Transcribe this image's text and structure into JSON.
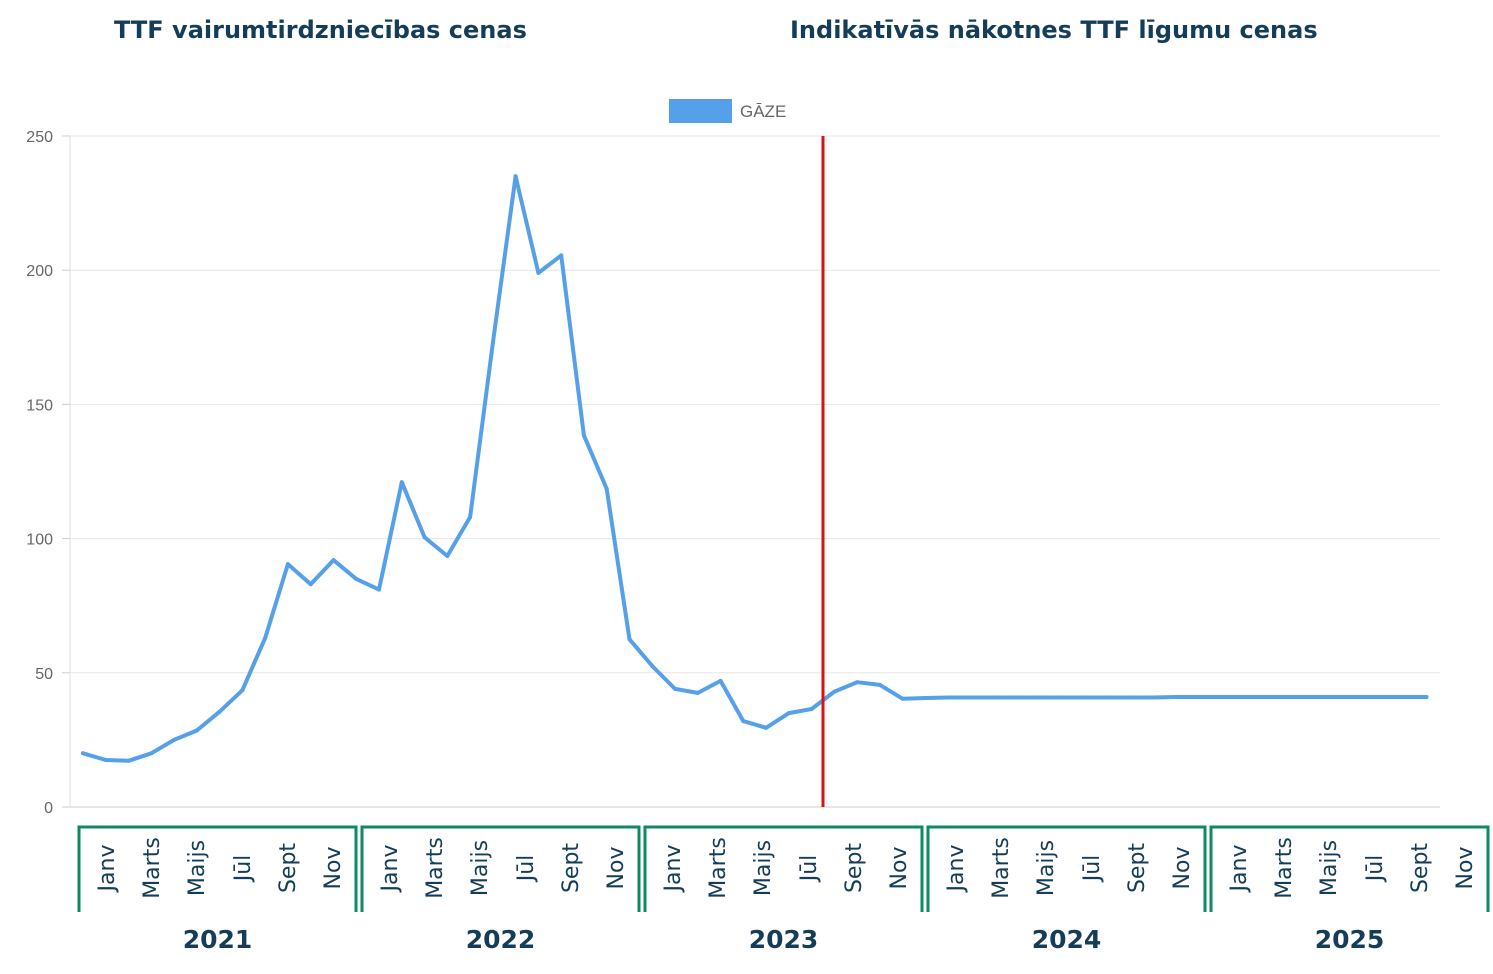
{
  "headings": {
    "left": "TTF vairumtirdzniecības cenas",
    "right": "Indikatīvās nākotnes TTF līgumu cenas"
  },
  "chart_data": {
    "type": "line",
    "legend": {
      "label": "GĀZE",
      "position": "top-center"
    },
    "colors": {
      "series": "#56a0ea",
      "divider": "#dd1111",
      "year_box": "#0d8a61",
      "grid": "#e6e6e6",
      "text": "#143d59"
    },
    "y_ticks": [
      0,
      50,
      100,
      150,
      200,
      250
    ],
    "ylim": [
      0,
      250
    ],
    "grid": true,
    "years": [
      "2021",
      "2022",
      "2023",
      "2024",
      "2025"
    ],
    "month_labels": [
      "Janv",
      "Marts",
      "Maijs",
      "Jūl",
      "Sept",
      "Nov"
    ],
    "divider_after": "2023-09",
    "series": [
      {
        "name": "GĀZE",
        "points": [
          [
            "2021-01",
            20
          ],
          [
            "2021-02",
            17.5
          ],
          [
            "2021-03",
            17.2
          ],
          [
            "2021-04",
            20
          ],
          [
            "2021-05",
            25
          ],
          [
            "2021-06",
            28.5
          ],
          [
            "2021-07",
            35.5
          ],
          [
            "2021-08",
            43.5
          ],
          [
            "2021-09",
            63
          ],
          [
            "2021-10",
            90.5
          ],
          [
            "2021-11",
            83
          ],
          [
            "2021-12",
            92
          ],
          [
            "2022-01",
            85
          ],
          [
            "2022-02",
            81
          ],
          [
            "2022-03",
            121
          ],
          [
            "2022-04",
            100.5
          ],
          [
            "2022-05",
            93.5
          ],
          [
            "2022-06",
            108
          ],
          [
            "2022-07",
            173
          ],
          [
            "2022-08",
            235
          ],
          [
            "2022-09",
            199
          ],
          [
            "2022-10",
            205.5
          ],
          [
            "2022-11",
            138.5
          ],
          [
            "2022-12",
            118.5
          ],
          [
            "2023-01",
            62.5
          ],
          [
            "2023-02",
            52.5
          ],
          [
            "2023-03",
            44
          ],
          [
            "2023-04",
            42.5
          ],
          [
            "2023-05",
            47
          ],
          [
            "2023-06",
            32
          ],
          [
            "2023-07",
            29.5
          ],
          [
            "2023-08",
            35
          ],
          [
            "2023-09",
            36.5
          ],
          [
            "2023-10",
            43
          ],
          [
            "2023-11",
            46.5
          ],
          [
            "2023-12",
            45.5
          ],
          [
            "2024-01",
            40.3
          ],
          [
            "2024-02",
            40.6
          ],
          [
            "2024-03",
            40.8
          ],
          [
            "2024-04",
            40.8
          ],
          [
            "2024-05",
            40.8
          ],
          [
            "2024-06",
            40.8
          ],
          [
            "2024-07",
            40.8
          ],
          [
            "2024-08",
            40.8
          ],
          [
            "2024-09",
            40.8
          ],
          [
            "2024-10",
            40.8
          ],
          [
            "2024-11",
            40.8
          ],
          [
            "2024-12",
            40.8
          ],
          [
            "2025-01",
            41
          ],
          [
            "2025-02",
            41
          ],
          [
            "2025-03",
            41
          ],
          [
            "2025-04",
            41
          ],
          [
            "2025-05",
            41
          ],
          [
            "2025-06",
            41
          ],
          [
            "2025-07",
            41
          ],
          [
            "2025-08",
            41
          ],
          [
            "2025-09",
            41
          ],
          [
            "2025-10",
            41
          ],
          [
            "2025-11",
            41
          ],
          [
            "2025-12",
            41
          ]
        ]
      }
    ]
  }
}
